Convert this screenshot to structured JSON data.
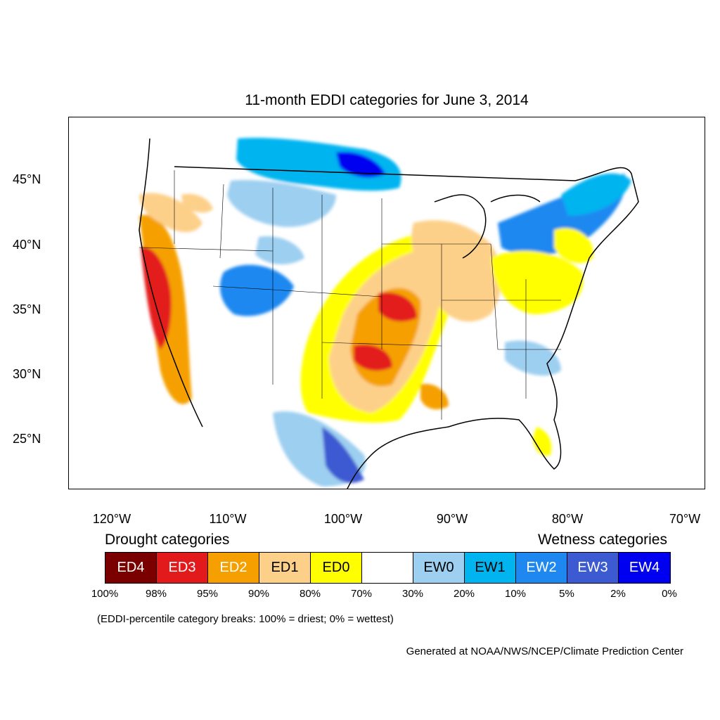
{
  "title": "11-month EDDI categories for June 3, 2014",
  "map": {
    "type": "choropleth-map",
    "region": "Contiguous United States",
    "lat_ticks": [
      "45°N",
      "40°N",
      "35°N",
      "30°N",
      "25°N"
    ],
    "lon_ticks": [
      "120°W",
      "110°W",
      "100°W",
      "90°W",
      "80°W",
      "70°W"
    ]
  },
  "legend": {
    "drought_heading": "Drought categories",
    "wetness_heading": "Wetness categories",
    "categories": [
      {
        "label": "ED4",
        "color": "#7a0000",
        "text_color": "#ffffff"
      },
      {
        "label": "ED3",
        "color": "#e31a1c",
        "text_color": "#ffffff"
      },
      {
        "label": "ED2",
        "color": "#f5a000",
        "text_color": "#ffffff"
      },
      {
        "label": "ED1",
        "color": "#fdd08a",
        "text_color": "#000000"
      },
      {
        "label": "ED0",
        "color": "#ffff00",
        "text_color": "#000000"
      },
      {
        "label": "",
        "color": "#ffffff",
        "text_color": "#000000"
      },
      {
        "label": "EW0",
        "color": "#9dcff0",
        "text_color": "#000000"
      },
      {
        "label": "EW1",
        "color": "#00b4f0",
        "text_color": "#000000"
      },
      {
        "label": "EW2",
        "color": "#1e88f0",
        "text_color": "#ffffff"
      },
      {
        "label": "EW3",
        "color": "#3c5ad2",
        "text_color": "#ffffff"
      },
      {
        "label": "EW4",
        "color": "#0000f0",
        "text_color": "#ffffff"
      }
    ],
    "breaks": [
      "100%",
      "98%",
      "95%",
      "90%",
      "80%",
      "70%",
      "30%",
      "20%",
      "10%",
      "5%",
      "2%",
      "0%"
    ]
  },
  "note": "(EDDI-percentile category breaks: 100% = driest; 0% = wettest)",
  "credit": "Generated at NOAA/NWS/NCEP/Climate Prediction Center"
}
